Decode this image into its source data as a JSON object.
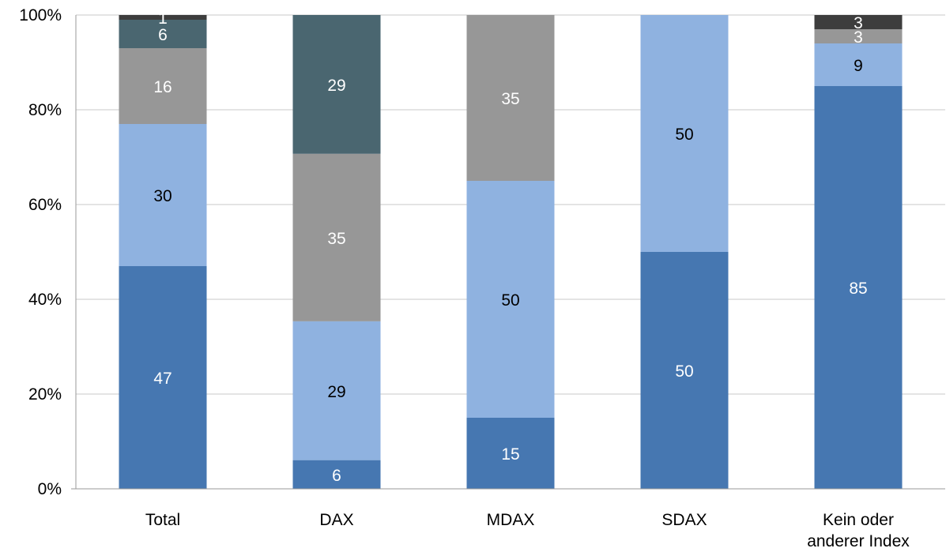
{
  "chart_data": {
    "type": "bar",
    "stacked": true,
    "percent_stacked": true,
    "categories": [
      "Total",
      "DAX",
      "MDAX",
      "SDAX",
      "Kein oder\nanderer Index"
    ],
    "ylim": [
      0,
      100
    ],
    "y_ticks": [
      "0%",
      "20%",
      "40%",
      "60%",
      "80%",
      "100%"
    ],
    "grid": true,
    "legend": "none",
    "series": [
      {
        "color": "#4677b1",
        "label_color": "#ffffff",
        "values": [
          47,
          6,
          15,
          50,
          85
        ]
      },
      {
        "color": "#8fb2e0",
        "label_color": "#000000",
        "values": [
          30,
          29,
          50,
          50,
          9
        ]
      },
      {
        "color": "#979797",
        "label_color": "#ffffff",
        "values": [
          16,
          35,
          35,
          0,
          3
        ]
      },
      {
        "color": "#4a6670",
        "label_color": "#ffffff",
        "values": [
          6,
          29,
          0,
          0,
          0
        ]
      },
      {
        "color": "#3d3d3d",
        "label_color": "#ffffff",
        "values": [
          1,
          0,
          0,
          0,
          3
        ]
      }
    ]
  }
}
